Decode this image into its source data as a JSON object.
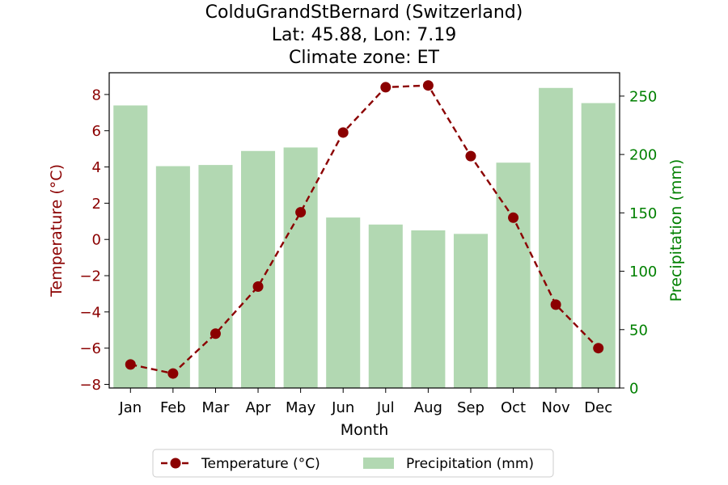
{
  "chart_data": {
    "type": "bar+line",
    "title_lines": [
      "ColduGrandStBernard (Switzerland)",
      "Lat: 45.88, Lon: 7.19",
      "Climate zone: ET"
    ],
    "categories": [
      "Jan",
      "Feb",
      "Mar",
      "Apr",
      "May",
      "Jun",
      "Jul",
      "Aug",
      "Sep",
      "Oct",
      "Nov",
      "Dec"
    ],
    "xlabel": "Month",
    "ylabel_left": "Temperature (°C)",
    "ylabel_right": "Precipitation (mm)",
    "ylim_left": [
      -8.2,
      9.2
    ],
    "ylim_right": [
      0,
      270
    ],
    "yticks_left": [
      -8,
      -6,
      -4,
      -2,
      0,
      2,
      4,
      6,
      8
    ],
    "yticks_right": [
      0,
      50,
      100,
      150,
      200,
      250
    ],
    "series": [
      {
        "name": "Temperature (°C)",
        "type": "line",
        "axis": "left",
        "color": "#8b0000",
        "values": [
          -6.9,
          -7.4,
          -5.2,
          -2.6,
          1.5,
          5.9,
          8.4,
          8.5,
          4.6,
          1.2,
          -3.6,
          -6.0
        ]
      },
      {
        "name": "Precipitation (mm)",
        "type": "bar",
        "axis": "right",
        "color": "#b2d8b2",
        "values": [
          242,
          190,
          191,
          203,
          206,
          146,
          140,
          135,
          132,
          193,
          257,
          244
        ]
      }
    ],
    "legend_position": "bottom-center",
    "grid": false
  }
}
